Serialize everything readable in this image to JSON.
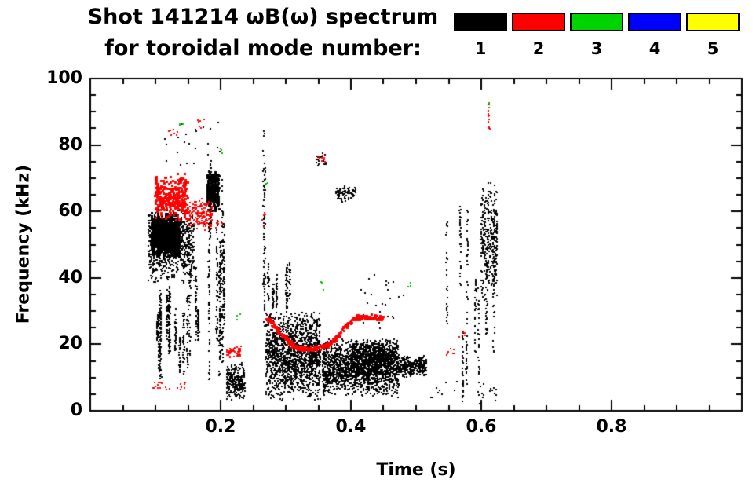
{
  "title": {
    "line1": "Shot 141214 ωB(ω) spectrum",
    "line2": "for toroidal mode number:"
  },
  "legend": {
    "entries": [
      {
        "label": "1",
        "color": "#000000"
      },
      {
        "label": "2",
        "color": "#ff0000"
      },
      {
        "label": "3",
        "color": "#00d400"
      },
      {
        "label": "4",
        "color": "#0000ff"
      },
      {
        "label": "5",
        "color": "#ffff00"
      }
    ]
  },
  "chart_data": {
    "type": "scatter",
    "title": "Shot 141214 ωB(ω) spectrum for toroidal mode number: 1-5",
    "xlabel": "Time (s)",
    "ylabel": "Frequency (kHz)",
    "xlim": [
      0.0,
      1.0
    ],
    "ylim": [
      0,
      100
    ],
    "xticks": {
      "values": [
        0.2,
        0.4,
        0.6,
        0.8
      ],
      "labels": [
        "0.2",
        "0.4",
        "0.6",
        "0.8"
      ]
    },
    "yticks": {
      "values": [
        0,
        20,
        40,
        60,
        80,
        100
      ],
      "labels": [
        "0",
        "20",
        "40",
        "60",
        "80",
        "100"
      ]
    },
    "x_minor": 0.05,
    "y_minor": 5,
    "grid": false,
    "legend_position": "top-right",
    "mode_colors": {
      "1": "#000000",
      "2": "#ff0000",
      "3": "#00bb00",
      "4": "#0000ff",
      "5": "#f0e000"
    },
    "clusters": [
      {
        "mode": 1,
        "shape": "blob",
        "t": [
          0.088,
          0.158
        ],
        "f": [
          38,
          62
        ],
        "n": 800,
        "ps": 2
      },
      {
        "mode": 1,
        "shape": "blob",
        "t": [
          0.092,
          0.135
        ],
        "f": [
          46,
          60
        ],
        "n": 800,
        "ps": 3
      },
      {
        "mode": 1,
        "shape": "vstreaks",
        "t": [
          0.098,
          0.168
        ],
        "f": [
          8,
          46
        ],
        "streaks": 14,
        "span": [
          8,
          26
        ],
        "n": 500,
        "ps": 2
      },
      {
        "mode": 1,
        "shape": "vstreaks",
        "t": [
          0.168,
          0.205
        ],
        "f": [
          8,
          76
        ],
        "streaks": 7,
        "span": [
          20,
          60
        ],
        "n": 420,
        "ps": 2
      },
      {
        "mode": 1,
        "shape": "blob",
        "t": [
          0.178,
          0.196
        ],
        "f": [
          60,
          73
        ],
        "n": 260,
        "ps": 3
      },
      {
        "mode": 1,
        "shape": "dots",
        "t": [
          0.108,
          0.2
        ],
        "f": [
          74,
          88
        ],
        "n": 22,
        "ps": 2
      },
      {
        "mode": 1,
        "shape": "blob",
        "t": [
          0.208,
          0.236
        ],
        "f": [
          3,
          15
        ],
        "n": 260,
        "ps": 2
      },
      {
        "mode": 1,
        "shape": "vstreaks",
        "t": [
          0.262,
          0.274
        ],
        "f": [
          18,
          88
        ],
        "streaks": 2,
        "span": [
          40,
          65
        ],
        "n": 90,
        "ps": 2
      },
      {
        "mode": 1,
        "shape": "blob",
        "t": [
          0.268,
          0.352
        ],
        "f": [
          3,
          31
        ],
        "n": 1500,
        "ps": 2
      },
      {
        "mode": 1,
        "shape": "vstreaks",
        "t": [
          0.272,
          0.315
        ],
        "f": [
          30,
          47
        ],
        "streaks": 6,
        "span": [
          6,
          15
        ],
        "n": 160,
        "ps": 2
      },
      {
        "mode": 1,
        "shape": "blob",
        "t": [
          0.355,
          0.472
        ],
        "f": [
          4,
          22
        ],
        "n": 1700,
        "ps": 2
      },
      {
        "mode": 1,
        "shape": "blob",
        "t": [
          0.4,
          0.47
        ],
        "f": [
          12,
          22
        ],
        "n": 500,
        "ps": 2
      },
      {
        "mode": 1,
        "shape": "blob",
        "t": [
          0.472,
          0.515
        ],
        "f": [
          10,
          17
        ],
        "n": 300,
        "ps": 2
      },
      {
        "mode": 1,
        "shape": "blob",
        "t": [
          0.376,
          0.406
        ],
        "f": [
          63,
          68
        ],
        "n": 90,
        "ps": 2
      },
      {
        "mode": 1,
        "shape": "dots",
        "t": [
          0.345,
          0.362
        ],
        "f": [
          74,
          78
        ],
        "n": 18,
        "ps": 2
      },
      {
        "mode": 1,
        "shape": "dots",
        "t": [
          0.408,
          0.48
        ],
        "f": [
          25,
          42
        ],
        "n": 26,
        "ps": 2
      },
      {
        "mode": 1,
        "shape": "dots",
        "t": [
          0.52,
          0.575
        ],
        "f": [
          4,
          9
        ],
        "n": 10,
        "ps": 2
      },
      {
        "mode": 1,
        "shape": "vstreaks",
        "t": [
          0.545,
          0.625
        ],
        "f": [
          2,
          70
        ],
        "streaks": 9,
        "span": [
          10,
          45
        ],
        "n": 260,
        "ps": 2
      },
      {
        "mode": 1,
        "shape": "blob",
        "t": [
          0.598,
          0.623
        ],
        "f": [
          33,
          70
        ],
        "n": 330,
        "ps": 2
      },
      {
        "mode": 1,
        "shape": "dots",
        "t": [
          0.596,
          0.622
        ],
        "f": [
          2,
          10
        ],
        "n": 14,
        "ps": 2
      },
      {
        "mode": 2,
        "shape": "blob",
        "t": [
          0.098,
          0.148
        ],
        "f": [
          57,
          72
        ],
        "n": 280,
        "ps": 3
      },
      {
        "mode": 2,
        "shape": "blob",
        "t": [
          0.148,
          0.186
        ],
        "f": [
          54,
          65
        ],
        "n": 150,
        "ps": 2
      },
      {
        "mode": 2,
        "shape": "dots",
        "t": [
          0.088,
          0.148
        ],
        "f": [
          6.5,
          9
        ],
        "n": 22,
        "ps": 2
      },
      {
        "mode": 2,
        "shape": "dots",
        "t": [
          0.118,
          0.14
        ],
        "f": [
          83,
          86
        ],
        "n": 7,
        "ps": 2
      },
      {
        "mode": 2,
        "shape": "dots",
        "t": [
          0.163,
          0.176
        ],
        "f": [
          85,
          88
        ],
        "n": 6,
        "ps": 2
      },
      {
        "mode": 2,
        "shape": "dots",
        "t": [
          0.19,
          0.202
        ],
        "f": [
          55,
          60
        ],
        "n": 8,
        "ps": 2
      },
      {
        "mode": 2,
        "shape": "blob",
        "t": [
          0.208,
          0.23
        ],
        "f": [
          16,
          20
        ],
        "n": 45,
        "ps": 2
      },
      {
        "mode": 2,
        "shape": "trace",
        "pts": [
          [
            0.268,
            28.5
          ],
          [
            0.285,
            25.0
          ],
          [
            0.3,
            21.5
          ],
          [
            0.315,
            19.3
          ],
          [
            0.335,
            18.8
          ],
          [
            0.355,
            19.3
          ],
          [
            0.37,
            21.0
          ],
          [
            0.385,
            24.5
          ],
          [
            0.396,
            27.0
          ],
          [
            0.406,
            28.3
          ],
          [
            0.425,
            28.6
          ],
          [
            0.447,
            28.2
          ]
        ],
        "n": 300,
        "jit": [
          0.003,
          0.7
        ],
        "ps": 3
      },
      {
        "mode": 2,
        "shape": "dots",
        "t": [
          0.346,
          0.36
        ],
        "f": [
          75,
          77
        ],
        "n": 10,
        "ps": 2
      },
      {
        "mode": 2,
        "shape": "dots",
        "t": [
          0.543,
          0.558
        ],
        "f": [
          17,
          19
        ],
        "n": 8,
        "ps": 2
      },
      {
        "mode": 2,
        "shape": "dots",
        "t": [
          0.565,
          0.574
        ],
        "f": [
          22,
          24
        ],
        "n": 5,
        "ps": 2
      },
      {
        "mode": 2,
        "shape": "vstreaks",
        "t": [
          0.607,
          0.615
        ],
        "f": [
          85,
          93
        ],
        "streaks": 1,
        "span": [
          6,
          8
        ],
        "n": 14,
        "ps": 2
      },
      {
        "mode": 2,
        "shape": "dots",
        "t": [
          0.258,
          0.268
        ],
        "f": [
          55,
          60
        ],
        "n": 5,
        "ps": 2
      },
      {
        "mode": 3,
        "shape": "dots",
        "t": [
          0.136,
          0.143
        ],
        "f": [
          84,
          87
        ],
        "n": 3,
        "ps": 2
      },
      {
        "mode": 3,
        "shape": "dots",
        "t": [
          0.196,
          0.203
        ],
        "f": [
          77,
          80
        ],
        "n": 3,
        "ps": 2
      },
      {
        "mode": 3,
        "shape": "dots",
        "t": [
          0.224,
          0.233
        ],
        "f": [
          27,
          30
        ],
        "n": 3,
        "ps": 2
      },
      {
        "mode": 3,
        "shape": "dots",
        "t": [
          0.266,
          0.273
        ],
        "f": [
          68,
          71
        ],
        "n": 3,
        "ps": 2
      },
      {
        "mode": 3,
        "shape": "dots",
        "t": [
          0.35,
          0.358
        ],
        "f": [
          36,
          39
        ],
        "n": 3,
        "ps": 2
      },
      {
        "mode": 3,
        "shape": "dots",
        "t": [
          0.486,
          0.493
        ],
        "f": [
          36,
          39
        ],
        "n": 3,
        "ps": 2
      },
      {
        "mode": 3,
        "shape": "dots",
        "t": [
          0.607,
          0.613
        ],
        "f": [
          90,
          93
        ],
        "n": 3,
        "ps": 2
      }
    ]
  }
}
